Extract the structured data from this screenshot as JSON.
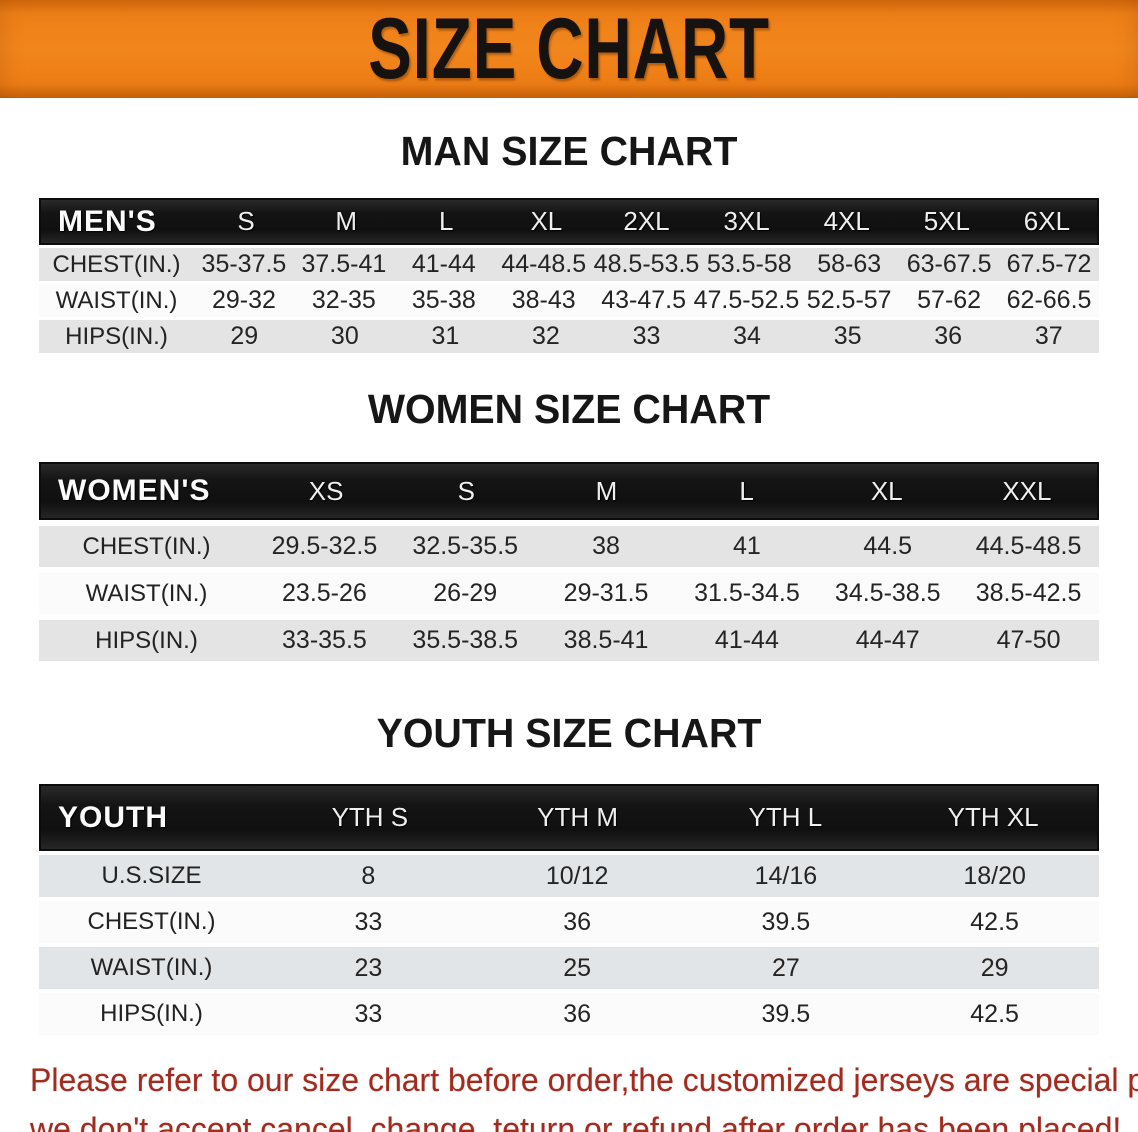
{
  "banner": {
    "title": "SIZE CHART",
    "bg_color": "#ef8018",
    "text_color": "#151210"
  },
  "sections": [
    {
      "id": "men",
      "title": "MAN SIZE CHART",
      "table": {
        "corner_label": "MEN'S",
        "columns": [
          "S",
          "M",
          "L",
          "XL",
          "2XL",
          "3XL",
          "4XL",
          "5XL",
          "6XL"
        ],
        "rows": [
          {
            "label": "CHEST(IN.)",
            "values": [
              "35-37.5",
              "37.5-41",
              "41-44",
              "44-48.5",
              "48.5-53.5",
              "53.5-58",
              "58-63",
              "63-67.5",
              "67.5-72"
            ]
          },
          {
            "label": "WAIST(IN.)",
            "values": [
              "29-32",
              "32-35",
              "35-38",
              "38-43",
              "43-47.5",
              "47.5-52.5",
              "52.5-57",
              "57-62",
              "62-66.5"
            ]
          },
          {
            "label": "HIPS(IN.)",
            "values": [
              "29",
              "30",
              "31",
              "32",
              "33",
              "34",
              "35",
              "36",
              "37"
            ]
          }
        ]
      }
    },
    {
      "id": "women",
      "title": "WOMEN SIZE CHART",
      "table": {
        "corner_label": "WOMEN'S",
        "columns": [
          "XS",
          "S",
          "M",
          "L",
          "XL",
          "XXL"
        ],
        "rows": [
          {
            "label": "CHEST(IN.)",
            "values": [
              "29.5-32.5",
              "32.5-35.5",
              "38",
              "41",
              "44.5",
              "44.5-48.5"
            ]
          },
          {
            "label": "WAIST(IN.)",
            "values": [
              "23.5-26",
              "26-29",
              "29-31.5",
              "31.5-34.5",
              "34.5-38.5",
              "38.5-42.5"
            ]
          },
          {
            "label": "HIPS(IN.)",
            "values": [
              "33-35.5",
              "35.5-38.5",
              "38.5-41",
              "41-44",
              "44-47",
              "47-50"
            ]
          }
        ]
      }
    },
    {
      "id": "youth",
      "title": "YOUTH SIZE CHART",
      "table": {
        "corner_label": "YOUTH",
        "columns": [
          "YTH S",
          "YTH M",
          "YTH L",
          "YTH XL"
        ],
        "rows": [
          {
            "label": "U.S.SIZE",
            "values": [
              "8",
              "10/12",
              "14/16",
              "18/20"
            ]
          },
          {
            "label": "CHEST(IN.)",
            "values": [
              "33",
              "36",
              "39.5",
              "42.5"
            ]
          },
          {
            "label": "WAIST(IN.)",
            "values": [
              "23",
              "25",
              "27",
              "29"
            ]
          },
          {
            "label": "HIPS(IN.)",
            "values": [
              "33",
              "36",
              "39.5",
              "42.5"
            ]
          }
        ]
      }
    }
  ],
  "disclaimer": {
    "line1": "Please refer to our size chart before order,the customized jerseys are special products,",
    "line2": "we don't accept cancel, change, teturn or refund after order has been placed!",
    "text_color": "#a32b1e"
  },
  "colors": {
    "banner_orange": "#ef8018",
    "header_black": "#141414",
    "row_gray": "#e4e4e4",
    "row_white": "#fbfbfb",
    "disclaimer_red": "#a32b1e"
  }
}
